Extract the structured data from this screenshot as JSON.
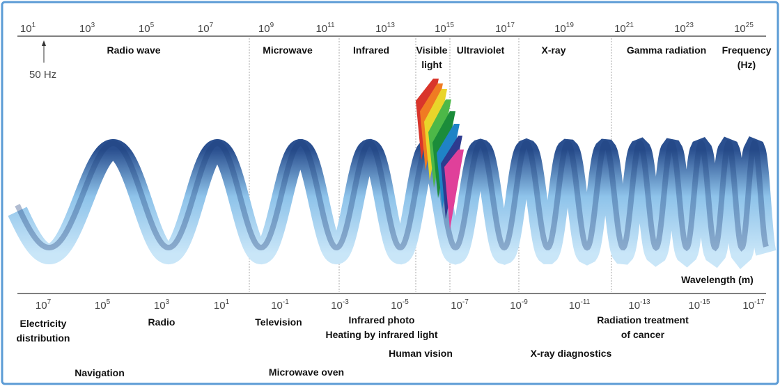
{
  "frequency_axis": {
    "ticks": [
      {
        "base": "10",
        "exponent": "1"
      },
      {
        "base": "10",
        "exponent": "3"
      },
      {
        "base": "10",
        "exponent": "5"
      },
      {
        "base": "10",
        "exponent": "7"
      },
      {
        "base": "10",
        "exponent": "9"
      },
      {
        "base": "10",
        "exponent": "11"
      },
      {
        "base": "10",
        "exponent": "13"
      },
      {
        "base": "10",
        "exponent": "15"
      },
      {
        "base": "10",
        "exponent": "17"
      },
      {
        "base": "10",
        "exponent": "19"
      },
      {
        "base": "10",
        "exponent": "21"
      },
      {
        "base": "10",
        "exponent": "23"
      },
      {
        "base": "10",
        "exponent": "25"
      }
    ],
    "marker": "50 Hz",
    "title": [
      "Frequency",
      "(Hz)"
    ]
  },
  "bands": [
    "Radio  wave",
    "Microwave",
    "Infrared",
    [
      "Visible",
      "light"
    ],
    "Ultraviolet",
    "X-ray",
    "Gamma radiation"
  ],
  "wavelength_axis": {
    "ticks": [
      {
        "base": "10",
        "exponent": "7"
      },
      {
        "base": "10",
        "exponent": "5"
      },
      {
        "base": "10",
        "exponent": "3"
      },
      {
        "base": "10",
        "exponent": "1"
      },
      {
        "base": "10",
        "exponent": "-1"
      },
      {
        "base": "10",
        "exponent": "-3"
      },
      {
        "base": "10",
        "exponent": "-5"
      },
      {
        "base": "10",
        "exponent": "-7"
      },
      {
        "base": "10",
        "exponent": "-9"
      },
      {
        "base": "10",
        "exponent": "-11"
      },
      {
        "base": "10",
        "exponent": "-13"
      },
      {
        "base": "10",
        "exponent": "-15"
      },
      {
        "base": "10",
        "exponent": "-17"
      }
    ],
    "title": "Wavelength   (m)"
  },
  "applications": [
    [
      "Electricity",
      "distribution"
    ],
    "Radio",
    "Television",
    "Infrared photo",
    "Heating by infrared light",
    "Human vision",
    "X-ray diagnostics",
    [
      "Radiation treatment",
      "of cancer"
    ],
    "Navigation",
    "Microwave oven"
  ]
}
